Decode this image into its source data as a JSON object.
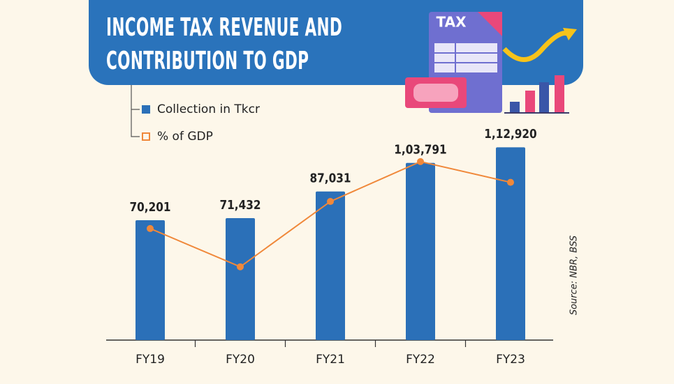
{
  "chart_data": {
    "type": "bar-line",
    "title": "INCOME TAX REVENUE AND CONTRIBUTION TO GDP",
    "icon_label": "TAX",
    "source": "Source: NBR, BSS",
    "categories": [
      "FY19",
      "FY20",
      "FY21",
      "FY22",
      "FY23"
    ],
    "series": [
      {
        "name": "Collection in Tkcr",
        "type": "bar",
        "color": "#2b70b8",
        "values": [
          70201,
          71432,
          87031,
          103791,
          112920
        ],
        "value_labels": [
          "70,201",
          "71,432",
          "87,031",
          "1,03,791",
          "1,12,920"
        ]
      },
      {
        "name": "% of GDP",
        "type": "line",
        "axis": "y2",
        "color": "#f0883a",
        "values": [
          2.2,
          1.96,
          2.37,
          2.62,
          2.49
        ]
      }
    ],
    "ylim": [
      0,
      140000
    ],
    "y2lim": [
      1.5,
      3.0
    ]
  }
}
